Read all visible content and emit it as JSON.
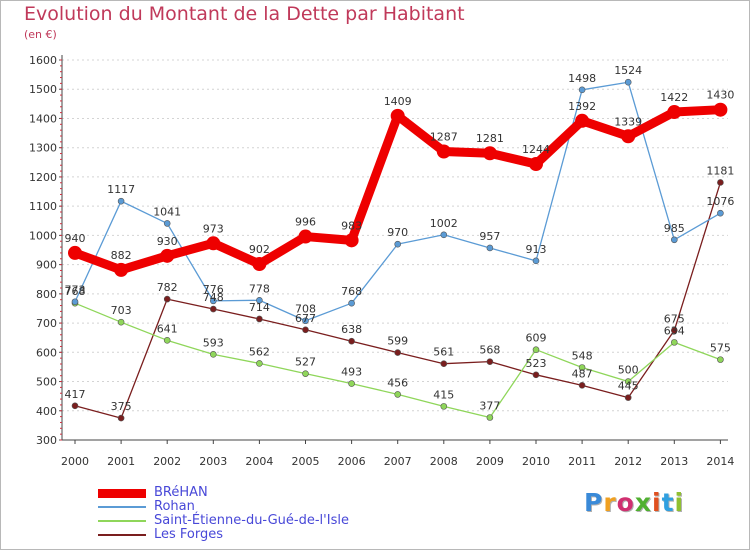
{
  "title": "Evolution du Montant de la Dette par Habitant",
  "subtitle": "(en €)",
  "brand": {
    "text": "Proxiti",
    "colors": [
      "#3a8ad8",
      "#f0a020",
      "#d03070",
      "#50b030",
      "#e05020",
      "#30a0e0",
      "#90c030"
    ]
  },
  "chart_data": {
    "type": "line",
    "title": "Evolution du Montant de la Dette par Habitant",
    "subtitle": "(en €)",
    "xlabel": "",
    "ylabel": "",
    "x": [
      "2000",
      "2001",
      "2002",
      "2003",
      "2004",
      "2005",
      "2006",
      "2007",
      "2008",
      "2009",
      "2010",
      "2011",
      "2012",
      "2013",
      "2014"
    ],
    "ylim": [
      300,
      1600
    ],
    "yticks": [
      300,
      400,
      500,
      600,
      700,
      800,
      900,
      1000,
      1100,
      1200,
      1300,
      1400,
      1500,
      1600
    ],
    "grid": "horizontal dashed",
    "legend_position": "bottom-left",
    "series": [
      {
        "name": "BRéHAN",
        "color": "#ee0000",
        "values": [
          940,
          882,
          930,
          973,
          902,
          996,
          983,
          1409,
          1287,
          1281,
          1244,
          1392,
          1339,
          1422,
          1430
        ]
      },
      {
        "name": "Rohan",
        "color": "#5b9bd5",
        "values": [
          773,
          1117,
          1041,
          776,
          778,
          708,
          768,
          970,
          1002,
          957,
          913,
          1498,
          1524,
          985,
          1076
        ]
      },
      {
        "name": "Saint-Étienne-du-Gué-de-l'Isle",
        "color": "#8fd65a",
        "values": [
          768,
          703,
          641,
          593,
          562,
          527,
          493,
          456,
          415,
          377,
          609,
          548,
          500,
          634,
          575
        ]
      },
      {
        "name": "Les Forges",
        "color": "#7a1e1e",
        "values": [
          417,
          375,
          782,
          748,
          714,
          677,
          638,
          599,
          561,
          568,
          523,
          487,
          445,
          675,
          1181
        ]
      }
    ]
  }
}
